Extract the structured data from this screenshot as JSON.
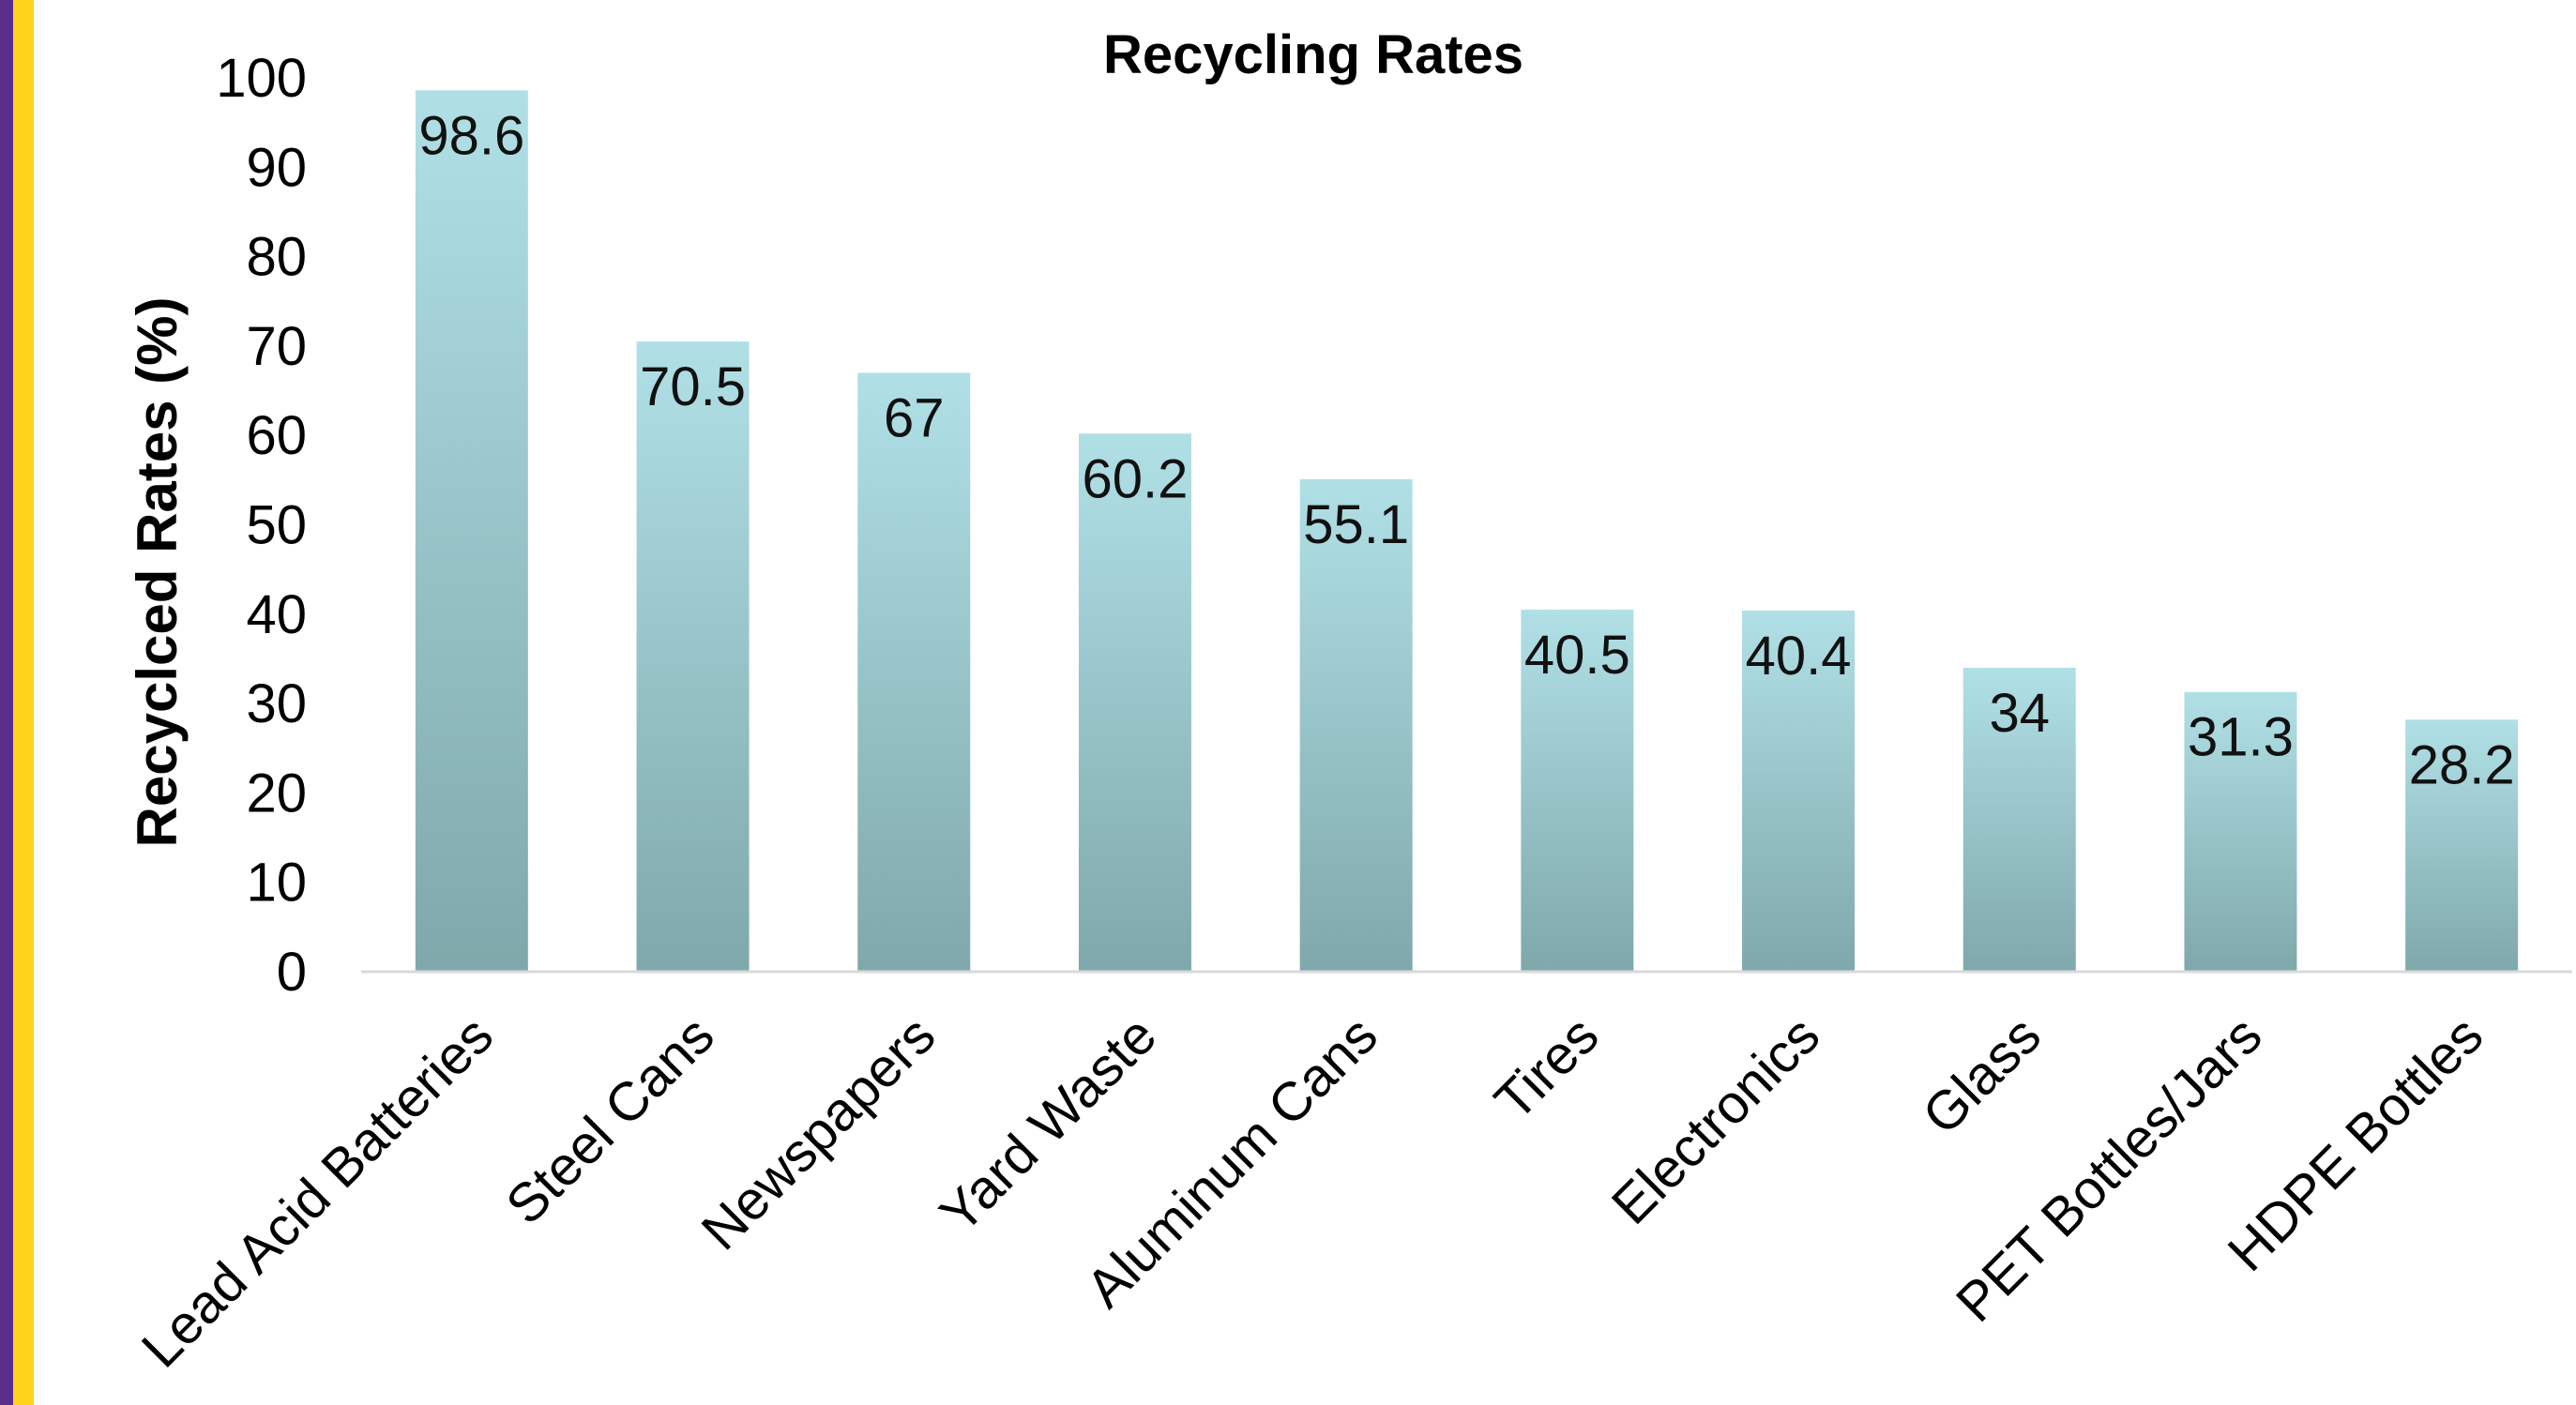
{
  "colors": {
    "stripe_purple": "#5B2C8A",
    "stripe_gold": "#FFD21C",
    "bar_top": "#B0E0E6",
    "bar_bottom": "#7FA8AB",
    "axis_line": "#D9D9D9"
  },
  "chart_data": {
    "type": "bar",
    "title": "Recycling Rates",
    "xlabel": "",
    "ylabel": "Recyclced Rates (%)",
    "ylim": [
      0,
      100
    ],
    "yticks": [
      0,
      10,
      20,
      30,
      40,
      50,
      60,
      70,
      80,
      90,
      100
    ],
    "grid": false,
    "legend": "none",
    "categories": [
      "Lead Acid Batteries",
      "Steel Cans",
      "Newspapers",
      "Yard Waste",
      "Aluminum Cans",
      "Tires",
      "Electronics",
      "Glass",
      "PET Bottles/Jars",
      "HDPE Bottles"
    ],
    "values": [
      98.6,
      70.5,
      67,
      60.2,
      55.1,
      40.5,
      40.4,
      34,
      31.3,
      28.2
    ]
  }
}
